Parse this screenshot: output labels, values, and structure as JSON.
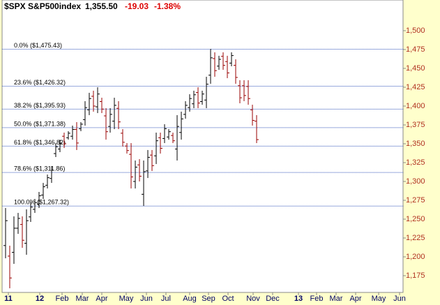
{
  "chart_data": {
    "type": "ohlc",
    "title": "$SPX S&P500index",
    "last_price": "1,355.50",
    "change": "-19.03",
    "change_pct": "-1.38%",
    "up_color": "#000000",
    "down_color": "#990000",
    "fib_color": "#3355bb",
    "x": [
      0,
      1,
      2,
      3,
      4,
      5,
      6,
      7,
      8,
      9,
      10,
      11,
      12,
      13,
      14,
      15,
      16,
      17,
      18,
      19,
      20,
      21,
      22,
      23,
      24,
      25,
      26,
      27,
      28,
      29,
      30,
      31,
      32,
      33,
      34,
      35,
      36,
      37,
      38,
      39,
      40,
      41,
      42,
      43,
      44,
      45,
      46,
      47,
      48,
      49,
      50,
      51,
      52,
      53,
      54,
      55,
      56,
      57,
      58,
      59,
      60
    ],
    "open": [
      1215,
      1201,
      1206,
      1238,
      1243,
      1218,
      1253,
      1263,
      1270,
      1282,
      1295,
      1304,
      1337,
      1343,
      1360,
      1358,
      1360,
      1369,
      1370,
      1382,
      1395,
      1413,
      1399,
      1406,
      1387,
      1373,
      1380,
      1397,
      1364,
      1347,
      1336,
      1300,
      1322,
      1283,
      1314,
      1335,
      1334,
      1358,
      1357,
      1359,
      1361,
      1343,
      1365,
      1389,
      1398,
      1403,
      1418,
      1406,
      1408,
      1441,
      1463,
      1453,
      1466,
      1459,
      1457,
      1454,
      1427,
      1427,
      1426,
      1395,
      1380
    ],
    "high": [
      1264.8,
      1214.8,
      1253.7,
      1258.3,
      1253.7,
      1263,
      1272.2,
      1276.8,
      1286.1,
      1298.1,
      1309.2,
      1320.4,
      1350.9,
      1355.5,
      1364.8,
      1366.7,
      1374.1,
      1378.7,
      1378.7,
      1406.5,
      1417.6,
      1420.4,
      1425,
      1411.1,
      1397.2,
      1397.2,
      1411.1,
      1406.5,
      1369.4,
      1350.9,
      1350.9,
      1327.8,
      1329.6,
      1327.8,
      1341.7,
      1341.7,
      1364.8,
      1364.8,
      1375.9,
      1369.4,
      1364.8,
      1388,
      1392.6,
      1406.5,
      1415.7,
      1420.4,
      1425,
      1420.4,
      1438.9,
      1475.9,
      1471.3,
      1466.7,
      1471.3,
      1466.7,
      1471.3,
      1462,
      1434.3,
      1434.3,
      1434.3,
      1401.8,
      1388
    ],
    "low": [
      1198.1,
      1158.3,
      1190.7,
      1230.5,
      1212,
      1202.8,
      1246.3,
      1258.3,
      1264.8,
      1276.8,
      1290.7,
      1298.1,
      1332.4,
      1338.9,
      1344.4,
      1355.5,
      1355.5,
      1341.7,
      1366.7,
      1374.1,
      1388,
      1392.6,
      1390.7,
      1390.7,
      1355.5,
      1364.8,
      1369.4,
      1369.4,
      1346.3,
      1337,
      1290.7,
      1290.7,
      1300,
      1267.6,
      1304.6,
      1313.9,
      1323.1,
      1337,
      1350.9,
      1355.5,
      1350.9,
      1327.8,
      1355.5,
      1383.3,
      1392.6,
      1397.2,
      1397.2,
      1401.8,
      1397.2,
      1429.6,
      1438.9,
      1448.1,
      1448.1,
      1437,
      1452.8,
      1429.6,
      1403.7,
      1406.5,
      1401.8,
      1374.1,
      1350.9
    ],
    "close": [
      1248,
      1172,
      1238,
      1251,
      1222,
      1248,
      1266,
      1272,
      1281,
      1293,
      1305,
      1315,
      1346,
      1351,
      1350,
      1364,
      1369,
      1351,
      1376,
      1398,
      1410,
      1400,
      1416,
      1396,
      1366,
      1389,
      1401,
      1379,
      1352,
      1341,
      1306,
      1319,
      1307,
      1313,
      1332,
      1321,
      1354,
      1344,
      1370,
      1366,
      1354,
      1373,
      1383,
      1401,
      1410,
      1415,
      1404,
      1416,
      1429,
      1464,
      1447,
      1462,
      1454,
      1444,
      1467,
      1438,
      1411,
      1414,
      1410,
      1381,
      1355.5
    ],
    "fib_levels": [
      {
        "value": 1475.43,
        "label": "0.0%   ($1,475.43)"
      },
      {
        "value": 1426.32,
        "label": "23.6%   ($1,426.32)"
      },
      {
        "value": 1395.93,
        "label": "38.2%   ($1,395.93)"
      },
      {
        "value": 1371.38,
        "label": "50.0%   ($1,371.38)"
      },
      {
        "value": 1346.82,
        "label": "61.8%   ($1,346.82)"
      },
      {
        "value": 1311.86,
        "label": "78.6%   ($1,311.86)"
      },
      {
        "value": 1267.32,
        "label": "100.0%   ($1,267.32)"
      }
    ],
    "xlim": [
      -0.83,
      95
    ],
    "xticks": [
      {
        "value": 0.67,
        "label": "11"
      },
      {
        "value": 8.17,
        "label": "12"
      },
      {
        "value": 13.5,
        "label": "Feb"
      },
      {
        "value": 18.33,
        "label": "Mar"
      },
      {
        "value": 23,
        "label": "Apr"
      },
      {
        "value": 28.83,
        "label": "May"
      },
      {
        "value": 33.67,
        "label": "Jun"
      },
      {
        "value": 38.33,
        "label": "Jul"
      },
      {
        "value": 44,
        "label": "Aug"
      },
      {
        "value": 48.5,
        "label": "Sep"
      },
      {
        "value": 53.17,
        "label": "Oct"
      },
      {
        "value": 59.17,
        "label": "Nov"
      },
      {
        "value": 63.83,
        "label": "Dec"
      },
      {
        "value": 70,
        "label": "13"
      },
      {
        "value": 74.33,
        "label": "Feb"
      },
      {
        "value": 79,
        "label": "Mar"
      },
      {
        "value": 83.67,
        "label": "Apr"
      },
      {
        "value": 89.17,
        "label": "May"
      },
      {
        "value": 94.17,
        "label": "Jun"
      }
    ],
    "ylim": [
      1152.8,
      1540.7
    ],
    "yticks": [
      {
        "value": 1175,
        "label": "1,175"
      },
      {
        "value": 1200,
        "label": "1,200"
      },
      {
        "value": 1225,
        "label": "1,225"
      },
      {
        "value": 1250,
        "label": "1,250"
      },
      {
        "value": 1275,
        "label": "1,275"
      },
      {
        "value": 1300,
        "label": "1,300"
      },
      {
        "value": 1325,
        "label": "1,325"
      },
      {
        "value": 1350,
        "label": "1,350"
      },
      {
        "value": 1375,
        "label": "1,375"
      },
      {
        "value": 1400,
        "label": "1,400"
      },
      {
        "value": 1425,
        "label": "1,425"
      },
      {
        "value": 1450,
        "label": "1,450"
      },
      {
        "value": 1475,
        "label": "1,475"
      },
      {
        "value": 1500,
        "label": "1,500"
      }
    ]
  }
}
